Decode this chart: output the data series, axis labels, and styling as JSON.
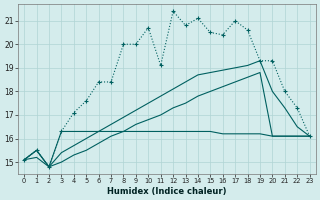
{
  "xlabel": "Humidex (Indice chaleur)",
  "bg_color": "#d4ecec",
  "grid_color": "#b0d4d4",
  "line_color": "#006060",
  "x_ticks": [
    0,
    1,
    2,
    3,
    4,
    5,
    6,
    7,
    8,
    9,
    10,
    11,
    12,
    13,
    14,
    15,
    16,
    17,
    18,
    19,
    20,
    21,
    22,
    23
  ],
  "y_ticks": [
    15,
    16,
    17,
    18,
    19,
    20,
    21
  ],
  "ylim": [
    14.5,
    21.7
  ],
  "xlim": [
    -0.5,
    23.5
  ],
  "series_main": [
    15.1,
    15.5,
    14.8,
    16.3,
    17.1,
    17.6,
    18.4,
    18.4,
    20.0,
    20.0,
    20.7,
    19.1,
    21.4,
    20.8,
    21.1,
    20.5,
    20.4,
    21.0,
    20.6,
    19.3,
    19.3,
    18.0,
    17.3,
    16.1
  ],
  "series_flat": [
    15.1,
    15.5,
    14.8,
    16.3,
    16.3,
    16.3,
    16.3,
    16.3,
    16.3,
    16.3,
    16.3,
    16.3,
    16.3,
    16.3,
    16.3,
    16.3,
    16.2,
    16.2,
    16.2,
    16.2,
    16.1,
    16.1,
    16.1,
    16.1
  ],
  "series_rise_high": [
    15.1,
    15.5,
    14.8,
    15.4,
    15.7,
    16.0,
    16.3,
    16.6,
    16.9,
    17.2,
    17.5,
    17.8,
    18.1,
    18.4,
    18.7,
    18.8,
    18.9,
    19.0,
    19.1,
    19.3,
    18.0,
    17.3,
    16.5,
    16.1
  ],
  "series_rise_low": [
    15.1,
    15.2,
    14.8,
    15.0,
    15.3,
    15.5,
    15.8,
    16.1,
    16.3,
    16.6,
    16.8,
    17.0,
    17.3,
    17.5,
    17.8,
    18.0,
    18.2,
    18.4,
    18.6,
    18.8,
    16.1,
    16.1,
    16.1,
    16.1
  ]
}
